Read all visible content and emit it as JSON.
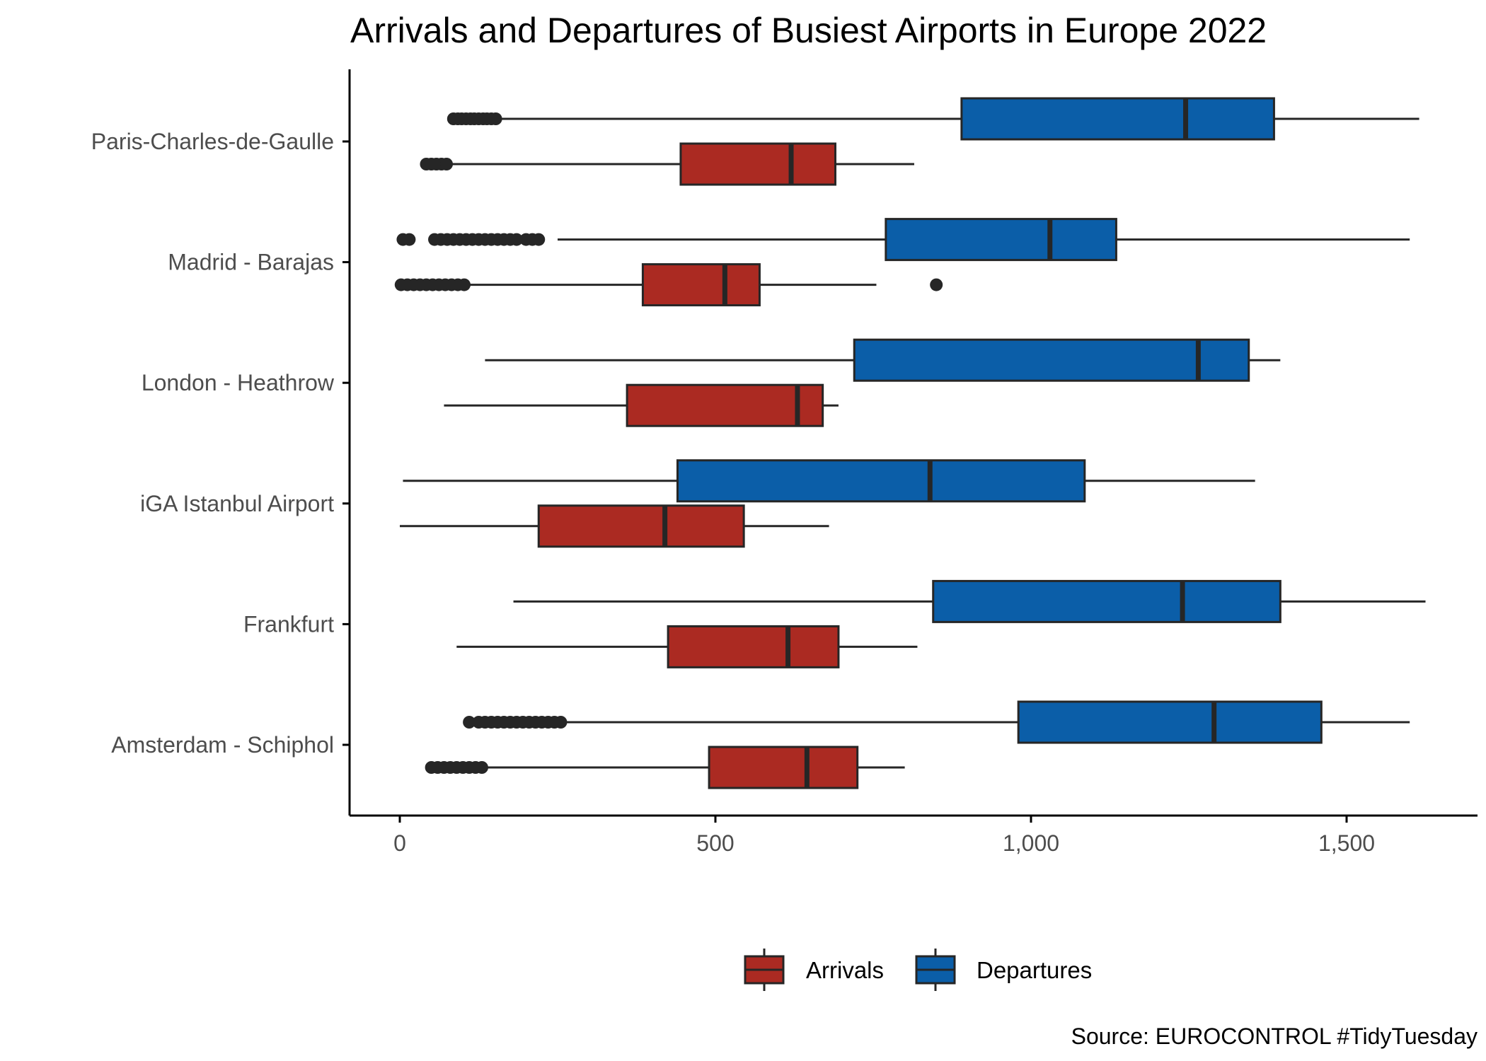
{
  "chart_data": {
    "type": "boxplot",
    "title": "Arrivals and Departures of Busiest Airports in Europe 2022",
    "caption": "Source: EUROCONTROL #TidyTuesday",
    "x_ticks": [
      0,
      500,
      1000,
      1500
    ],
    "x_tick_labels": [
      "0",
      "500",
      "1,000",
      "1,500"
    ],
    "xlim": [
      -80,
      1705
    ],
    "categories": [
      "Paris-Charles-de-Gaulle",
      "Madrid - Barajas",
      "London - Heathrow",
      "iGA Istanbul Airport",
      "Frankfurt",
      "Amsterdam - Schiphol"
    ],
    "legend": {
      "position": "bottom",
      "entries": [
        "Arrivals",
        "Departures"
      ]
    },
    "colors": {
      "Arrivals": "#AB2A22",
      "Departures": "#0B5EA8",
      "outline": "#262626"
    },
    "series": [
      {
        "name": "Departures",
        "boxes": [
          {
            "category": "Paris-Charles-de-Gaulle",
            "whisker_low": 160,
            "q1": 890,
            "median": 1245,
            "q3": 1385,
            "whisker_high": 1615,
            "outliers": [
              85,
              92,
              98,
              105,
              112,
              118,
              125,
              132,
              138,
              145,
              152
            ]
          },
          {
            "category": "Madrid - Barajas",
            "whisker_low": 250,
            "q1": 770,
            "median": 1030,
            "q3": 1135,
            "whisker_high": 1600,
            "outliers": [
              5,
              15,
              55,
              65,
              75,
              85,
              95,
              105,
              115,
              125,
              135,
              145,
              155,
              165,
              175,
              185,
              200,
              210,
              220
            ]
          },
          {
            "category": "London - Heathrow",
            "whisker_low": 135,
            "q1": 720,
            "median": 1265,
            "q3": 1345,
            "whisker_high": 1395,
            "outliers": []
          },
          {
            "category": "iGA Istanbul Airport",
            "whisker_low": 5,
            "q1": 440,
            "median": 840,
            "q3": 1085,
            "whisker_high": 1355,
            "outliers": []
          },
          {
            "category": "Frankfurt",
            "whisker_low": 180,
            "q1": 845,
            "median": 1240,
            "q3": 1395,
            "whisker_high": 1625,
            "outliers": []
          },
          {
            "category": "Amsterdam - Schiphol",
            "whisker_low": 260,
            "q1": 980,
            "median": 1290,
            "q3": 1460,
            "whisker_high": 1600,
            "outliers": [
              110,
              125,
              135,
              145,
              155,
              165,
              175,
              185,
              195,
              205,
              215,
              225,
              235,
              245,
              255
            ]
          }
        ]
      },
      {
        "name": "Arrivals",
        "boxes": [
          {
            "category": "Paris-Charles-de-Gaulle",
            "whisker_low": 80,
            "q1": 445,
            "median": 620,
            "q3": 690,
            "whisker_high": 815,
            "outliers": [
              42,
              50,
              58,
              66,
              74
            ]
          },
          {
            "category": "Madrid - Barajas",
            "whisker_low": 105,
            "q1": 385,
            "median": 515,
            "q3": 570,
            "whisker_high": 755,
            "outliers": [
              2,
              12,
              22,
              32,
              42,
              52,
              62,
              72,
              82,
              92,
              102,
              850
            ]
          },
          {
            "category": "London - Heathrow",
            "whisker_low": 70,
            "q1": 360,
            "median": 630,
            "q3": 670,
            "whisker_high": 695,
            "outliers": []
          },
          {
            "category": "iGA Istanbul Airport",
            "whisker_low": 0,
            "q1": 220,
            "median": 420,
            "q3": 545,
            "whisker_high": 680,
            "outliers": []
          },
          {
            "category": "Frankfurt",
            "whisker_low": 90,
            "q1": 425,
            "median": 615,
            "q3": 695,
            "whisker_high": 820,
            "outliers": []
          },
          {
            "category": "Amsterdam - Schiphol",
            "whisker_low": 130,
            "q1": 490,
            "median": 645,
            "q3": 725,
            "whisker_high": 800,
            "outliers": [
              50,
              60,
              70,
              80,
              90,
              100,
              110,
              120,
              130
            ]
          }
        ]
      }
    ]
  }
}
